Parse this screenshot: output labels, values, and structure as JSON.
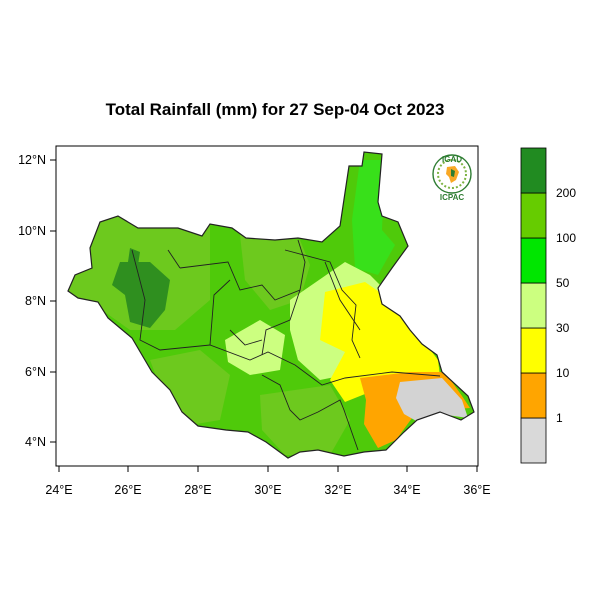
{
  "title": "Total Rainfall (mm) for 27 Sep-04 Oct 2023",
  "map": {
    "lon_range": [
      24,
      36
    ],
    "lat_range": [
      3.5,
      12.3
    ],
    "lon_ticks": [
      "24°E",
      "26°E",
      "28°E",
      "30°E",
      "32°E",
      "34°E",
      "36°E"
    ],
    "lat_ticks": [
      "4°N",
      "6°N",
      "8°N",
      "10°N",
      "12°N"
    ]
  },
  "legend": {
    "classes": [
      {
        "color": "#d9d9d9"
      },
      {
        "color": "#ffa500"
      },
      {
        "color": "#ffff00"
      },
      {
        "color": "#ccff80"
      },
      {
        "color": "#00e600"
      },
      {
        "color": "#66cc00"
      },
      {
        "color": "#218b21"
      }
    ],
    "labels": [
      "1",
      "10",
      "30",
      "50",
      "100",
      "200"
    ]
  },
  "logo": {
    "top_text": "IGAD",
    "bottom_text": "ICPAC"
  }
}
